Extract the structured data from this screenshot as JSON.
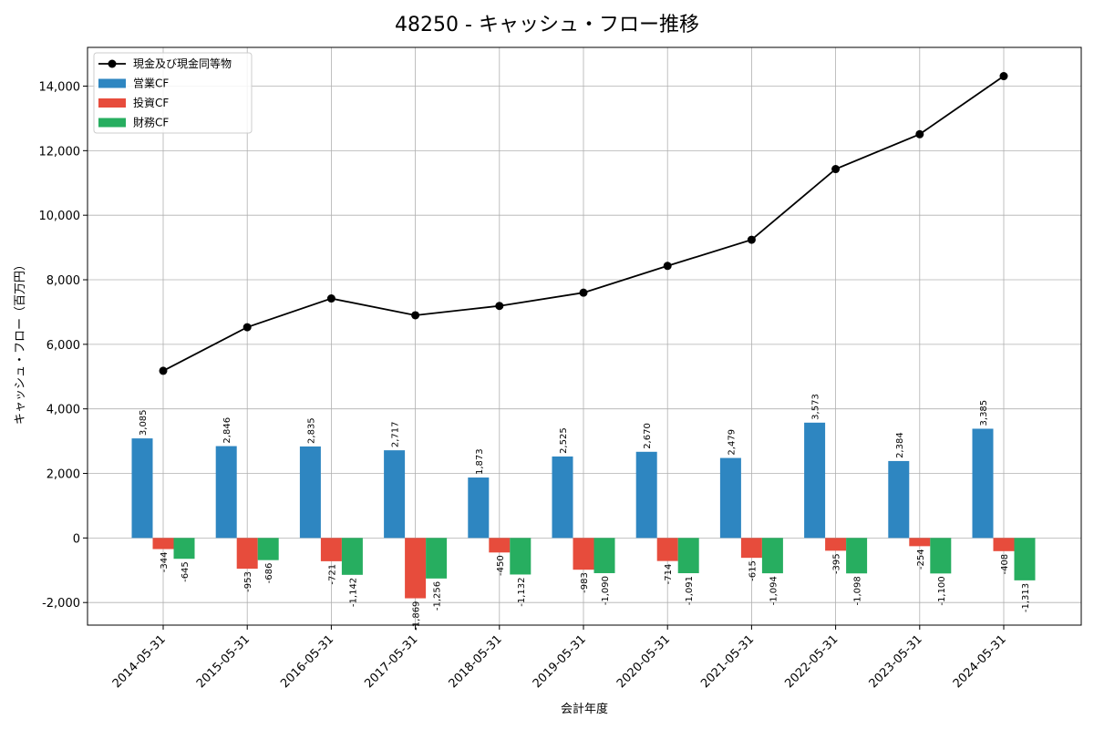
{
  "chart_data": {
    "type": "bar",
    "title": "48250 - キャッシュ・フロー推移",
    "xlabel": "会計年度",
    "ylabel": "キャッシュ・フロー（百万円）",
    "categories": [
      "2014-05-31",
      "2015-05-31",
      "2016-05-31",
      "2017-05-31",
      "2018-05-31",
      "2019-05-31",
      "2020-05-31",
      "2021-05-31",
      "2022-05-31",
      "2023-05-31",
      "2024-05-31"
    ],
    "ylim": [
      -2700,
      15200
    ],
    "yticks": [
      -2000,
      0,
      2000,
      4000,
      6000,
      8000,
      10000,
      12000,
      14000
    ],
    "ytick_labels": [
      "-2,000",
      "0",
      "2,000",
      "4,000",
      "6,000",
      "8,000",
      "10,000",
      "12,000",
      "14,000"
    ],
    "grid": true,
    "legend_position": "top-left",
    "series": [
      {
        "name": "営業CF",
        "kind": "bar",
        "color": "#2e86c1",
        "values": [
          3085,
          2846,
          2835,
          2717,
          1873,
          2525,
          2670,
          2479,
          3573,
          2384,
          3385
        ],
        "labels": [
          "3,085",
          "2,846",
          "2,835",
          "2,717",
          "1,873",
          "2,525",
          "2,670",
          "2,479",
          "3,573",
          "2,384",
          "3,385"
        ]
      },
      {
        "name": "投資CF",
        "kind": "bar",
        "color": "#e74c3c",
        "values": [
          -344,
          -953,
          -721,
          -1869,
          -450,
          -983,
          -714,
          -615,
          -395,
          -254,
          -408
        ],
        "labels": [
          "-344",
          "-953",
          "-721",
          "-1,869",
          "-450",
          "-983",
          "-714",
          "-615",
          "-395",
          "-254",
          "-408"
        ]
      },
      {
        "name": "財務CF",
        "kind": "bar",
        "color": "#27ae60",
        "values": [
          -645,
          -686,
          -1142,
          -1256,
          -1132,
          -1090,
          -1091,
          -1094,
          -1098,
          -1100,
          -1313
        ],
        "labels": [
          "-645",
          "-686",
          "-1,142",
          "-1,256",
          "-1,132",
          "-1,090",
          "-1,091",
          "-1,094",
          "-1,098",
          "-1,100",
          "-1,313"
        ]
      },
      {
        "name": "現金及び現金同等物",
        "kind": "line",
        "color": "#000000",
        "values": [
          5180,
          6530,
          7420,
          6900,
          7190,
          7600,
          8430,
          9240,
          11430,
          12510,
          14310
        ]
      }
    ]
  }
}
